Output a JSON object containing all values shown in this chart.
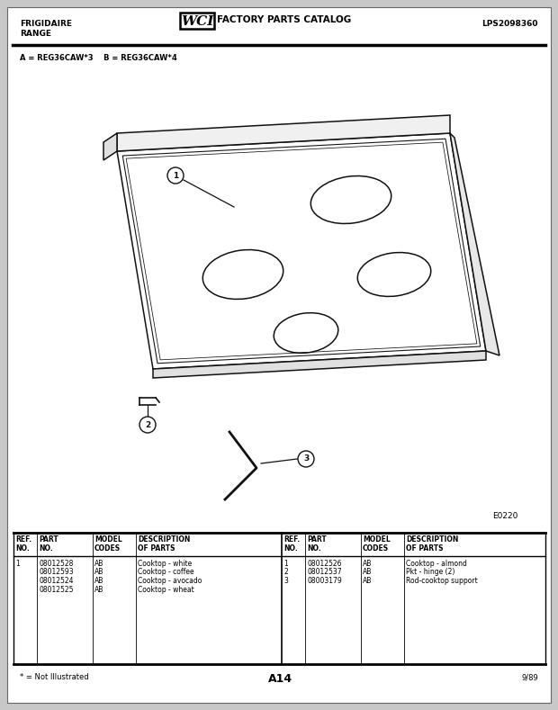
{
  "bg_color": "#c8c8c8",
  "page_bg": "#ffffff",
  "header_left_line1": "FRIGIDAIRE",
  "header_left_line2": "RANGE",
  "header_right": "LPS2098360",
  "model_line": "A = REG36CAW*3    B = REG36CAW*4",
  "diagram_code": "E0220",
  "footer_left": "* = Not Illustrated",
  "footer_center": "A14",
  "footer_right": "9/89",
  "line_color": "#111111",
  "text_color": "#000000"
}
